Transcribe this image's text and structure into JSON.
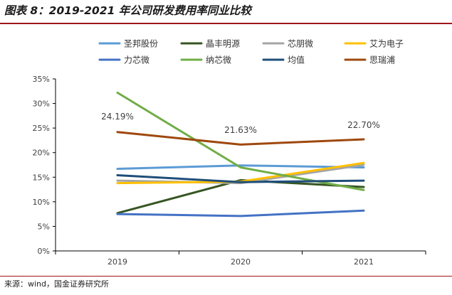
{
  "page": {
    "title": "图表 8：2019-2021 年公司研发费用率同业比较",
    "source": "来源：wind，国金证券研究所"
  },
  "chart_data": {
    "type": "line",
    "title": "",
    "xlabel": "",
    "ylabel": "",
    "categories": [
      "2019",
      "2020",
      "2021"
    ],
    "ylim": [
      0,
      35
    ],
    "yticks": [
      "0%",
      "5%",
      "10%",
      "15%",
      "20%",
      "25%",
      "30%",
      "35%"
    ],
    "grid": false,
    "legend_position": "top",
    "series": [
      {
        "name": "圣邦股份",
        "color": "#5b9bd5",
        "values": [
          16.7,
          17.4,
          17.0
        ]
      },
      {
        "name": "晶丰明源",
        "color": "#375623",
        "values": [
          7.7,
          14.4,
          13.0
        ]
      },
      {
        "name": "芯朋微",
        "color": "#a5a5a5",
        "values": [
          14.3,
          13.8,
          17.5
        ]
      },
      {
        "name": "艾为电子",
        "color": "#ffc000",
        "values": [
          13.8,
          14.1,
          17.9
        ]
      },
      {
        "name": "力芯微",
        "color": "#4472c4",
        "values": [
          7.5,
          7.1,
          8.2
        ]
      },
      {
        "name": "纳芯微",
        "color": "#70ad47",
        "values": [
          32.2,
          17.0,
          12.4
        ]
      },
      {
        "name": "均值",
        "color": "#1f4e79",
        "values": [
          15.4,
          14.0,
          14.3
        ]
      },
      {
        "name": "思瑞浦",
        "color": "#9e480e",
        "values": [
          24.19,
          21.63,
          22.7
        ]
      }
    ],
    "annotations": [
      "24.19%",
      "21.63%",
      "22.70%"
    ]
  }
}
